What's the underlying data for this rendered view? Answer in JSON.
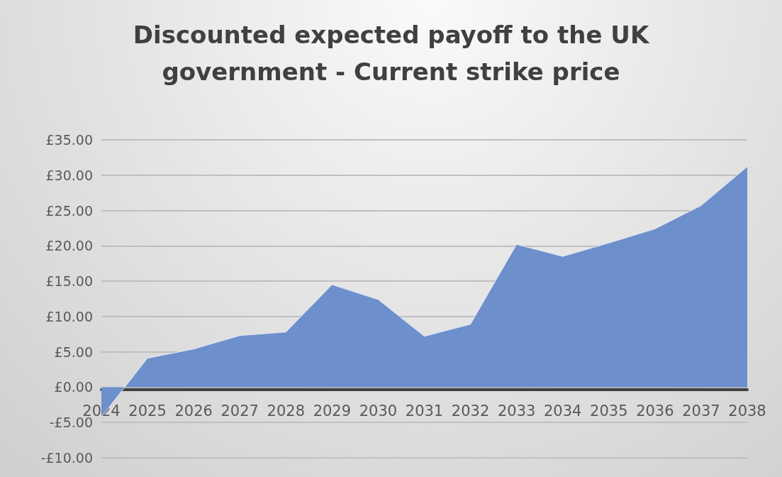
{
  "chart_data": {
    "type": "area",
    "title": "Discounted expected payoff to the UK\ngovernment - Current strike price",
    "categories": [
      "2024",
      "2025",
      "2026",
      "2027",
      "2028",
      "2029",
      "2030",
      "2031",
      "2032",
      "2033",
      "2034",
      "2035",
      "2036",
      "2037",
      "2038"
    ],
    "values": [
      -4.2,
      4.1,
      5.4,
      7.3,
      7.8,
      14.5,
      12.4,
      7.2,
      8.9,
      20.2,
      18.5,
      20.4,
      22.4,
      25.7,
      31.2
    ],
    "color": "#6d8fcb",
    "ylim": [
      -10,
      35
    ],
    "yticks": [
      {
        "value": -10,
        "label": "-£10.00"
      },
      {
        "value": -5,
        "label": "-£5.00"
      },
      {
        "value": 0,
        "label": "£0.00"
      },
      {
        "value": 5,
        "label": "£5.00"
      },
      {
        "value": 10,
        "label": "£10.00"
      },
      {
        "value": 15,
        "label": "£15.00"
      },
      {
        "value": 20,
        "label": "£20.00"
      },
      {
        "value": 25,
        "label": "£25.00"
      },
      {
        "value": 30,
        "label": "£30.00"
      },
      {
        "value": 35,
        "label": "£35.00"
      }
    ],
    "grid": "y"
  }
}
